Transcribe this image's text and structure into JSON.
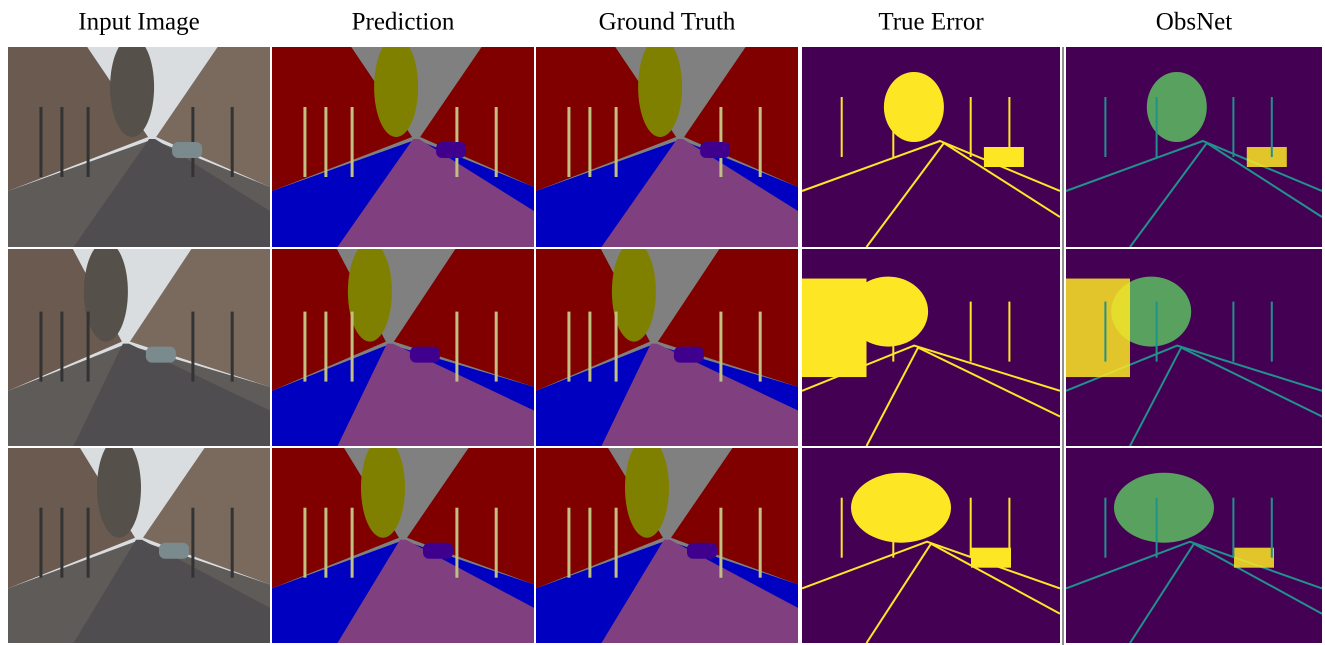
{
  "columns": [
    "Input Image",
    "Prediction",
    "Ground Truth",
    "True Error",
    "ObsNet"
  ]
}
